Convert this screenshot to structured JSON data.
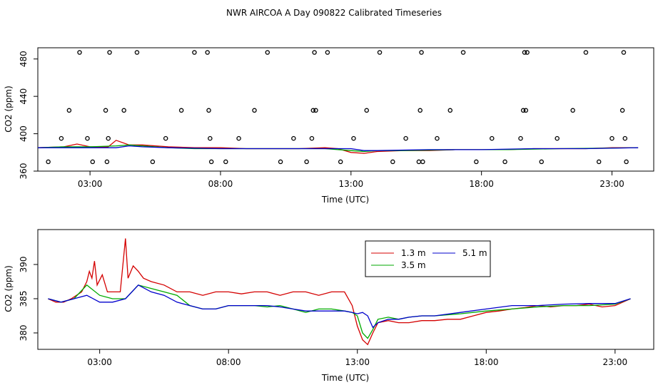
{
  "chart_data": {
    "title": "NWR AIRCOA A  Day 090822  Calibrated Timeseries",
    "panels": [
      {
        "id": "top",
        "type": "line",
        "xlabel": "Time (UTC)",
        "ylabel": "CO2 (ppm)",
        "xlim": [
          1.0,
          24.6
        ],
        "ylim": [
          360,
          492
        ],
        "xticks": [
          3,
          8,
          13,
          18,
          23
        ],
        "xtick_labels": [
          "03:00",
          "08:00",
          "13:00",
          "18:00",
          "23:00"
        ],
        "yticks": [
          360,
          400,
          440,
          480
        ],
        "ytick_labels": [
          "360",
          "400",
          "440",
          "480"
        ],
        "series": [
          {
            "name": "1.3 m",
            "color": "#d40000",
            "x": [
              1.0,
              2.0,
              2.5,
              3.0,
              3.7,
              4.0,
              4.5,
              5.0,
              6.0,
              7.0,
              8.0,
              9.0,
              10.0,
              11.0,
              12.0,
              12.5,
              13.0,
              13.5,
              14.0,
              15.0,
              16.0,
              17.0,
              18.0,
              19.0,
              20.0,
              21.0,
              22.0,
              23.0,
              24.0
            ],
            "y": [
              385,
              386,
              389,
              386,
              386,
              393,
              388,
              388,
              386,
              385,
              385,
              384,
              384,
              384,
              385,
              384,
              380,
              379,
              381,
              382,
              382,
              383,
              383,
              383,
              384,
              384,
              384,
              385,
              385
            ]
          },
          {
            "name": "3.5 m",
            "color": "#00aa00",
            "x": [
              1.0,
              2.0,
              3.0,
              4.0,
              4.5,
              5.0,
              6.0,
              7.0,
              8.0,
              10.0,
              12.0,
              13.0,
              13.5,
              14.0,
              15.0,
              17.0,
              19.0,
              21.0,
              24.0
            ],
            "y": [
              385,
              386,
              386,
              387,
              388,
              387,
              385,
              384,
              384,
              384,
              384,
              382,
              381,
              382,
              382,
              383,
              383,
              384,
              385
            ]
          },
          {
            "name": "5.1 m",
            "color": "#0000cc",
            "x": [
              1.0,
              2.0,
              3.0,
              4.0,
              4.5,
              5.0,
              6.0,
              8.0,
              10.0,
              12.0,
              13.0,
              13.5,
              14.0,
              16.0,
              18.0,
              20.0,
              22.0,
              24.0
            ],
            "y": [
              385,
              385,
              385,
              385,
              387,
              386,
              385,
              384,
              384,
              384,
              384,
              382,
              382,
              383,
              383,
              384,
              384,
              385
            ]
          }
        ],
        "points": {
          "marker": "open-circle",
          "x": [
            1.4,
            1.9,
            2.2,
            2.6,
            2.9,
            3.1,
            3.6,
            3.65,
            3.7,
            3.75,
            4.3,
            4.8,
            5.4,
            5.9,
            6.5,
            7.0,
            7.5,
            7.55,
            7.6,
            7.65,
            8.2,
            8.7,
            9.3,
            9.8,
            10.3,
            10.8,
            11.3,
            11.5,
            11.55,
            11.6,
            11.65,
            12.1,
            12.6,
            13.1,
            13.6,
            14.1,
            14.6,
            15.1,
            15.6,
            15.65,
            15.7,
            15.75,
            16.3,
            16.8,
            17.3,
            17.8,
            18.4,
            18.9,
            19.5,
            19.6,
            19.65,
            19.7,
            19.75,
            20.3,
            20.9,
            21.5,
            22.0,
            22.5,
            23.0,
            23.4,
            23.45,
            23.5,
            23.55
          ],
          "y": [
            370,
            395,
            425,
            487,
            395,
            370,
            425,
            370,
            395,
            487,
            425,
            487,
            370,
            395,
            425,
            487,
            487,
            425,
            395,
            370,
            370,
            395,
            425,
            487,
            370,
            395,
            370,
            395,
            425,
            487,
            425,
            487,
            370,
            395,
            425,
            487,
            370,
            395,
            370,
            425,
            487,
            370,
            395,
            425,
            487,
            370,
            395,
            370,
            395,
            425,
            487,
            425,
            487,
            370,
            395,
            425,
            487,
            370,
            395,
            425,
            487,
            395,
            370
          ]
        }
      },
      {
        "id": "bottom",
        "type": "line",
        "xlabel": "Time (UTC)",
        "ylabel": "CO2 (ppm)",
        "xlim": [
          0.6,
          24.5
        ],
        "ylim": [
          377.6,
          395.1
        ],
        "xticks": [
          3,
          8,
          13,
          18,
          23
        ],
        "xtick_labels": [
          "03:00",
          "08:00",
          "13:00",
          "18:00",
          "23:00"
        ],
        "yticks": [
          380,
          385,
          390
        ],
        "ytick_labels": [
          "380",
          "385",
          "390"
        ],
        "legend": {
          "position": "top-center",
          "entries": [
            {
              "label": "1.3 m",
              "color": "#d40000"
            },
            {
              "label": "5.1 m",
              "color": "#0000cc"
            },
            {
              "label": "3.5 m",
              "color": "#00aa00"
            }
          ]
        },
        "series": [
          {
            "name": "1.3 m",
            "color": "#d40000",
            "x": [
              1.0,
              1.3,
              1.6,
              1.9,
              2.1,
              2.3,
              2.5,
              2.6,
              2.7,
              2.8,
              2.9,
              3.1,
              3.3,
              3.5,
              3.8,
              4.0,
              4.1,
              4.3,
              4.5,
              4.7,
              5.0,
              5.5,
              6.0,
              6.5,
              7.0,
              7.5,
              8.0,
              8.5,
              9.0,
              9.5,
              10.0,
              10.5,
              11.0,
              11.5,
              12.0,
              12.5,
              12.8,
              13.0,
              13.2,
              13.4,
              13.6,
              13.8,
              14.2,
              14.6,
              15.0,
              15.5,
              16.0,
              16.5,
              17.0,
              17.5,
              18.0,
              18.5,
              19.0,
              19.5,
              20.0,
              20.5,
              21.0,
              21.5,
              22.0,
              22.5,
              23.0,
              23.3,
              23.6
            ],
            "y": [
              385,
              384.5,
              384.5,
              385,
              385.5,
              386,
              387.5,
              389,
              388,
              390.5,
              387,
              388.5,
              386,
              386,
              386,
              393.8,
              388,
              389.8,
              389,
              388,
              387.5,
              387,
              386,
              386,
              385.5,
              386,
              386,
              385.7,
              386,
              386,
              385.5,
              386,
              386,
              385.5,
              386,
              386,
              384,
              381,
              379,
              378.3,
              380,
              381.5,
              381.8,
              381.5,
              381.5,
              381.8,
              381.8,
              382,
              382,
              382.5,
              383,
              383.2,
              383.5,
              383.7,
              384,
              383.8,
              384,
              384,
              384.2,
              383.8,
              384,
              384.5,
              385
            ]
          },
          {
            "name": "3.5 m",
            "color": "#00aa00",
            "x": [
              1.0,
              1.5,
              2.0,
              2.5,
              3.0,
              3.5,
              4.0,
              4.5,
              5.0,
              5.5,
              6.0,
              6.5,
              7.0,
              7.5,
              8.0,
              8.5,
              9.0,
              9.5,
              10.0,
              10.5,
              11.0,
              11.5,
              12.0,
              12.5,
              12.8,
              13.0,
              13.2,
              13.4,
              13.6,
              13.8,
              14.2,
              14.6,
              15.0,
              15.5,
              16.0,
              17.0,
              18.0,
              19.0,
              20.0,
              21.0,
              22.0,
              23.0,
              23.6
            ],
            "y": [
              385,
              384.5,
              385,
              387,
              385.5,
              385,
              385,
              387,
              386.5,
              386,
              385.5,
              384,
              383.5,
              383.5,
              384,
              384,
              384,
              383.8,
              384,
              383.5,
              383,
              383.5,
              383.5,
              383.2,
              383,
              382.5,
              380,
              379.2,
              380.5,
              382,
              382.3,
              382,
              382.3,
              382.5,
              382.5,
              382.8,
              383.2,
              383.5,
              383.8,
              384,
              384,
              384.2,
              385
            ]
          },
          {
            "name": "5.1 m",
            "color": "#0000cc",
            "x": [
              1.0,
              1.5,
              2.0,
              2.5,
              3.0,
              3.5,
              4.0,
              4.5,
              5.0,
              5.5,
              6.0,
              6.5,
              7.0,
              7.5,
              8.0,
              8.5,
              9.0,
              9.5,
              10.0,
              10.5,
              11.0,
              11.5,
              12.0,
              12.5,
              12.8,
              13.0,
              13.2,
              13.4,
              13.6,
              13.8,
              14.2,
              14.6,
              15.0,
              15.5,
              16.0,
              17.0,
              18.0,
              19.0,
              20.0,
              21.0,
              22.0,
              23.0,
              23.6
            ],
            "y": [
              385,
              384.5,
              385,
              385.5,
              384.5,
              384.5,
              385,
              387,
              386,
              385.5,
              384.5,
              384,
              383.5,
              383.5,
              384,
              384,
              384,
              384,
              383.8,
              383.5,
              383.2,
              383.2,
              383.2,
              383.2,
              383,
              382.8,
              383,
              382.5,
              380.8,
              381.5,
              382,
              382,
              382.3,
              382.5,
              382.5,
              383,
              383.5,
              384,
              384,
              384.2,
              384.3,
              384.3,
              385
            ]
          }
        ]
      }
    ]
  }
}
